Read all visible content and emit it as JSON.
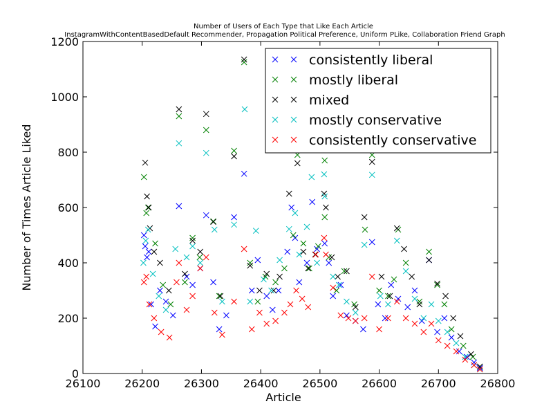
{
  "chart_data": {
    "type": "scatter",
    "title_line1": "Number of Users of Each Type that Like Each Article",
    "title_line2": "InstagramWithContentBasedDefault Recommender, Propagation Political Preference, Uniform PLike, Collaboration Friend Graph",
    "xlabel": "Article",
    "ylabel": "Number of Times Article Liked",
    "xlim": [
      26100,
      26800
    ],
    "ylim": [
      0,
      1200
    ],
    "xticks": [
      26100,
      26200,
      26300,
      26400,
      26500,
      26600,
      26700,
      26800
    ],
    "yticks": [
      0,
      200,
      400,
      600,
      800,
      1000,
      1200
    ],
    "xtick_labels": [
      "26100",
      "26200",
      "26300",
      "26400",
      "26500",
      "26600",
      "26700",
      "26800"
    ],
    "ytick_labels": [
      "0",
      "200",
      "400",
      "600",
      "800",
      "1000",
      "1200"
    ],
    "grid": false,
    "legend_position": "top-right",
    "marker": "x",
    "series": [
      {
        "name": "consistently liberal",
        "color": "#0000ff",
        "points": [
          [
            26203,
            500
          ],
          [
            26205,
            460
          ],
          [
            26208,
            420
          ],
          [
            26211,
            440
          ],
          [
            26215,
            250
          ],
          [
            26222,
            170
          ],
          [
            26230,
            300
          ],
          [
            26240,
            260
          ],
          [
            26252,
            210
          ],
          [
            26262,
            605
          ],
          [
            26275,
            350
          ],
          [
            26285,
            320
          ],
          [
            26298,
            380
          ],
          [
            26308,
            572
          ],
          [
            26320,
            330
          ],
          [
            26330,
            160
          ],
          [
            26342,
            210
          ],
          [
            26355,
            565
          ],
          [
            26372,
            722
          ],
          [
            26385,
            300
          ],
          [
            26395,
            410
          ],
          [
            26410,
            280
          ],
          [
            26420,
            230
          ],
          [
            26430,
            300
          ],
          [
            26445,
            440
          ],
          [
            26452,
            600
          ],
          [
            26458,
            490
          ],
          [
            26465,
            330
          ],
          [
            26478,
            400
          ],
          [
            26487,
            620
          ],
          [
            26495,
            450
          ],
          [
            26508,
            470
          ],
          [
            26515,
            400
          ],
          [
            26522,
            280
          ],
          [
            26535,
            320
          ],
          [
            26545,
            210
          ],
          [
            26560,
            190
          ],
          [
            26573,
            160
          ],
          [
            26588,
            475
          ],
          [
            26598,
            250
          ],
          [
            26610,
            200
          ],
          [
            26620,
            320
          ],
          [
            26632,
            270
          ],
          [
            26648,
            240
          ],
          [
            26660,
            300
          ],
          [
            26672,
            190
          ],
          [
            26684,
            410
          ],
          [
            26698,
            150
          ],
          [
            26710,
            200
          ],
          [
            26722,
            130
          ],
          [
            26735,
            80
          ],
          [
            26748,
            60
          ],
          [
            26760,
            40
          ],
          [
            26770,
            20
          ]
        ]
      },
      {
        "name": "mostly liberal",
        "color": "#008000",
        "points": [
          [
            26203,
            710
          ],
          [
            26207,
            580
          ],
          [
            26210,
            600
          ],
          [
            26222,
            470
          ],
          [
            26235,
            320
          ],
          [
            26248,
            250
          ],
          [
            26262,
            930
          ],
          [
            26272,
            330
          ],
          [
            26285,
            490
          ],
          [
            26297,
            420
          ],
          [
            26308,
            880
          ],
          [
            26320,
            550
          ],
          [
            26330,
            280
          ],
          [
            26355,
            805
          ],
          [
            26372,
            1125
          ],
          [
            26382,
            400
          ],
          [
            26395,
            260
          ],
          [
            26408,
            350
          ],
          [
            26425,
            330
          ],
          [
            26440,
            380
          ],
          [
            26455,
            500
          ],
          [
            26462,
            790
          ],
          [
            26472,
            470
          ],
          [
            26482,
            380
          ],
          [
            26497,
            460
          ],
          [
            26508,
            770
          ],
          [
            26508,
            565
          ],
          [
            26515,
            420
          ],
          [
            26528,
            300
          ],
          [
            26541,
            370
          ],
          [
            26558,
            250
          ],
          [
            26576,
            520
          ],
          [
            26588,
            790
          ],
          [
            26600,
            300
          ],
          [
            26615,
            280
          ],
          [
            26625,
            340
          ],
          [
            26632,
            520
          ],
          [
            26645,
            400
          ],
          [
            26668,
            260
          ],
          [
            26684,
            440
          ],
          [
            26698,
            320
          ],
          [
            26710,
            250
          ],
          [
            26722,
            160
          ],
          [
            26742,
            100
          ],
          [
            26758,
            60
          ],
          [
            26770,
            25
          ]
        ]
      },
      {
        "name": "mixed",
        "color": "#000000",
        "points": [
          [
            26205,
            762
          ],
          [
            26208,
            640
          ],
          [
            26211,
            600
          ],
          [
            26213,
            525
          ],
          [
            26220,
            440
          ],
          [
            26230,
            400
          ],
          [
            26245,
            300
          ],
          [
            26262,
            955
          ],
          [
            26272,
            360
          ],
          [
            26285,
            480
          ],
          [
            26298,
            440
          ],
          [
            26308,
            938
          ],
          [
            26320,
            548
          ],
          [
            26332,
            280
          ],
          [
            26355,
            785
          ],
          [
            26372,
            1135
          ],
          [
            26382,
            390
          ],
          [
            26398,
            300
          ],
          [
            26410,
            360
          ],
          [
            26422,
            300
          ],
          [
            26432,
            350
          ],
          [
            26448,
            650
          ],
          [
            26462,
            760
          ],
          [
            26472,
            440
          ],
          [
            26480,
            380
          ],
          [
            26492,
            430
          ],
          [
            26507,
            650
          ],
          [
            26510,
            600
          ],
          [
            26520,
            420
          ],
          [
            26530,
            350
          ],
          [
            26545,
            370
          ],
          [
            26560,
            240
          ],
          [
            26575,
            565
          ],
          [
            26588,
            765
          ],
          [
            26604,
            350
          ],
          [
            26618,
            280
          ],
          [
            26630,
            525
          ],
          [
            26642,
            450
          ],
          [
            26655,
            350
          ],
          [
            26668,
            250
          ],
          [
            26684,
            410
          ],
          [
            26698,
            325
          ],
          [
            26712,
            280
          ],
          [
            26725,
            200
          ],
          [
            26737,
            135
          ],
          [
            26755,
            70
          ],
          [
            26770,
            25
          ]
        ]
      },
      {
        "name": "mostly conservative",
        "color": "#00bfbf",
        "points": [
          [
            26202,
            400
          ],
          [
            26206,
            480
          ],
          [
            26210,
            520
          ],
          [
            26218,
            360
          ],
          [
            26228,
            280
          ],
          [
            26240,
            230
          ],
          [
            26256,
            450
          ],
          [
            26262,
            832
          ],
          [
            26275,
            420
          ],
          [
            26285,
            460
          ],
          [
            26298,
            400
          ],
          [
            26308,
            797
          ],
          [
            26322,
            520
          ],
          [
            26335,
            260
          ],
          [
            26355,
            538
          ],
          [
            26373,
            955
          ],
          [
            26382,
            260
          ],
          [
            26392,
            516
          ],
          [
            26405,
            340
          ],
          [
            26418,
            300
          ],
          [
            26432,
            410
          ],
          [
            26448,
            522
          ],
          [
            26458,
            580
          ],
          [
            26465,
            430
          ],
          [
            26478,
            530
          ],
          [
            26486,
            710
          ],
          [
            26495,
            400
          ],
          [
            26507,
            720
          ],
          [
            26508,
            640
          ],
          [
            26522,
            350
          ],
          [
            26532,
            320
          ],
          [
            26545,
            260
          ],
          [
            26560,
            220
          ],
          [
            26575,
            465
          ],
          [
            26588,
            718
          ],
          [
            26602,
            280
          ],
          [
            26615,
            250
          ],
          [
            26630,
            480
          ],
          [
            26645,
            370
          ],
          [
            26660,
            270
          ],
          [
            26675,
            200
          ],
          [
            26688,
            250
          ],
          [
            26700,
            190
          ],
          [
            26715,
            150
          ],
          [
            26730,
            110
          ],
          [
            26745,
            60
          ],
          [
            26760,
            30
          ],
          [
            26770,
            15
          ]
        ]
      },
      {
        "name": "consistently conservative",
        "color": "#ff0000",
        "points": [
          [
            26203,
            330
          ],
          [
            26207,
            350
          ],
          [
            26212,
            250
          ],
          [
            26220,
            200
          ],
          [
            26232,
            150
          ],
          [
            26246,
            130
          ],
          [
            26258,
            330
          ],
          [
            26262,
            400
          ],
          [
            26275,
            230
          ],
          [
            26285,
            280
          ],
          [
            26298,
            380
          ],
          [
            26308,
            420
          ],
          [
            26322,
            220
          ],
          [
            26335,
            140
          ],
          [
            26355,
            260
          ],
          [
            26372,
            450
          ],
          [
            26385,
            160
          ],
          [
            26398,
            220
          ],
          [
            26410,
            180
          ],
          [
            26425,
            190
          ],
          [
            26440,
            220
          ],
          [
            26450,
            250
          ],
          [
            26460,
            300
          ],
          [
            26470,
            270
          ],
          [
            26480,
            240
          ],
          [
            26493,
            430
          ],
          [
            26507,
            490
          ],
          [
            26510,
            430
          ],
          [
            26522,
            310
          ],
          [
            26535,
            210
          ],
          [
            26548,
            200
          ],
          [
            26560,
            190
          ],
          [
            26575,
            200
          ],
          [
            26588,
            350
          ],
          [
            26600,
            160
          ],
          [
            26615,
            200
          ],
          [
            26630,
            260
          ],
          [
            26645,
            200
          ],
          [
            26660,
            180
          ],
          [
            26675,
            150
          ],
          [
            26688,
            180
          ],
          [
            26700,
            120
          ],
          [
            26715,
            100
          ],
          [
            26730,
            80
          ],
          [
            26745,
            50
          ],
          [
            26760,
            30
          ],
          [
            26770,
            15
          ]
        ]
      }
    ]
  }
}
